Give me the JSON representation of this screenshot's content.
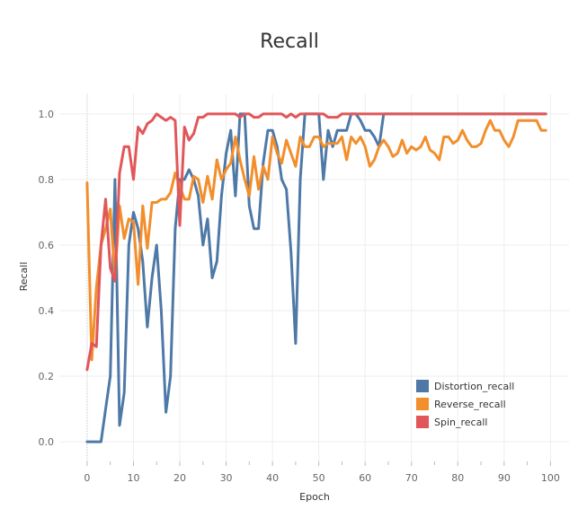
{
  "chart_data": {
    "type": "line",
    "title": "Recall",
    "xlabel": "Epoch",
    "ylabel": "Recall",
    "xlim": [
      -6,
      104
    ],
    "ylim": [
      -0.06,
      1.06
    ],
    "xticks": [
      0,
      10,
      20,
      30,
      40,
      50,
      60,
      70,
      80,
      90,
      100
    ],
    "yticks": [
      0.0,
      0.2,
      0.4,
      0.6,
      0.8,
      1.0
    ],
    "xtick_labels": [
      "0",
      "10",
      "20",
      "30",
      "40",
      "50",
      "60",
      "70",
      "80",
      "90",
      "100"
    ],
    "ytick_labels": [
      "0.0",
      "0.2",
      "0.4",
      "0.6",
      "0.8",
      "1.0"
    ],
    "grid": true,
    "legend_position": "bottom-right",
    "x": [
      0,
      1,
      2,
      3,
      4,
      5,
      6,
      7,
      8,
      9,
      10,
      11,
      12,
      13,
      14,
      15,
      16,
      17,
      18,
      19,
      20,
      21,
      22,
      23,
      24,
      25,
      26,
      27,
      28,
      29,
      30,
      31,
      32,
      33,
      34,
      35,
      36,
      37,
      38,
      39,
      40,
      41,
      42,
      43,
      44,
      45,
      46,
      47,
      48,
      49,
      50,
      51,
      52,
      53,
      54,
      55,
      56,
      57,
      58,
      59,
      60,
      61,
      62,
      63,
      64,
      65,
      66,
      67,
      68,
      69,
      70,
      71,
      72,
      73,
      74,
      75,
      76,
      77,
      78,
      79,
      80,
      81,
      82,
      83,
      84,
      85,
      86,
      87,
      88,
      89,
      90,
      91,
      92,
      93,
      94,
      95,
      96,
      97,
      98,
      99
    ],
    "series": [
      {
        "name": "Distortion_recall",
        "color": "#4e79a7",
        "values": [
          0.0,
          0.0,
          0.0,
          0.0,
          0.1,
          0.2,
          0.8,
          0.05,
          0.15,
          0.6,
          0.7,
          0.65,
          0.55,
          0.35,
          0.5,
          0.6,
          0.4,
          0.09,
          0.2,
          0.65,
          0.8,
          0.8,
          0.83,
          0.8,
          0.75,
          0.6,
          0.68,
          0.5,
          0.55,
          0.75,
          0.88,
          0.95,
          0.75,
          1.0,
          1.0,
          0.72,
          0.65,
          0.65,
          0.85,
          0.95,
          0.95,
          0.9,
          0.8,
          0.77,
          0.58,
          0.3,
          0.8,
          1.0,
          1.0,
          1.0,
          1.0,
          0.8,
          0.95,
          0.9,
          0.95,
          0.95,
          0.95,
          1.0,
          1.0,
          0.98,
          0.95,
          0.95,
          0.93,
          0.9,
          1.0,
          1.0,
          1.0,
          1.0,
          1.0,
          1.0,
          1.0,
          1.0,
          1.0,
          1.0,
          1.0,
          1.0,
          1.0,
          1.0,
          1.0,
          1.0,
          1.0,
          1.0,
          1.0,
          1.0,
          1.0,
          1.0,
          1.0,
          1.0,
          1.0,
          1.0,
          1.0,
          1.0,
          1.0,
          1.0,
          1.0,
          1.0,
          1.0,
          1.0,
          1.0,
          1.0
        ]
      },
      {
        "name": "Reverse_recall",
        "color": "#f28e2b",
        "values": [
          0.79,
          0.25,
          0.47,
          0.6,
          0.65,
          0.71,
          0.5,
          0.72,
          0.62,
          0.68,
          0.67,
          0.48,
          0.72,
          0.59,
          0.73,
          0.73,
          0.74,
          0.74,
          0.76,
          0.82,
          0.78,
          0.74,
          0.74,
          0.81,
          0.8,
          0.73,
          0.81,
          0.74,
          0.86,
          0.8,
          0.83,
          0.85,
          0.93,
          0.86,
          0.8,
          0.75,
          0.87,
          0.77,
          0.84,
          0.8,
          0.93,
          0.88,
          0.85,
          0.92,
          0.88,
          0.84,
          0.93,
          0.9,
          0.9,
          0.93,
          0.93,
          0.9,
          0.91,
          0.91,
          0.91,
          0.93,
          0.86,
          0.93,
          0.91,
          0.93,
          0.9,
          0.84,
          0.86,
          0.9,
          0.92,
          0.9,
          0.87,
          0.88,
          0.92,
          0.88,
          0.9,
          0.89,
          0.9,
          0.93,
          0.89,
          0.88,
          0.86,
          0.93,
          0.93,
          0.91,
          0.92,
          0.95,
          0.92,
          0.9,
          0.9,
          0.91,
          0.95,
          0.98,
          0.95,
          0.95,
          0.92,
          0.9,
          0.93,
          0.98,
          0.98,
          0.98,
          0.98,
          0.98,
          0.95,
          0.95
        ]
      },
      {
        "name": "Spin_recall",
        "color": "#e15759",
        "values": [
          0.22,
          0.3,
          0.29,
          0.6,
          0.74,
          0.53,
          0.49,
          0.82,
          0.9,
          0.9,
          0.8,
          0.96,
          0.94,
          0.97,
          0.98,
          1.0,
          0.99,
          0.98,
          0.99,
          0.98,
          0.66,
          0.96,
          0.92,
          0.94,
          0.99,
          0.99,
          1.0,
          1.0,
          1.0,
          1.0,
          1.0,
          1.0,
          1.0,
          0.99,
          1.0,
          1.0,
          0.99,
          0.99,
          1.0,
          1.0,
          1.0,
          1.0,
          1.0,
          0.99,
          1.0,
          0.99,
          1.0,
          1.0,
          1.0,
          1.0,
          1.0,
          1.0,
          0.99,
          0.99,
          0.99,
          1.0,
          1.0,
          1.0,
          1.0,
          1.0,
          1.0,
          1.0,
          1.0,
          1.0,
          1.0,
          1.0,
          1.0,
          1.0,
          1.0,
          1.0,
          1.0,
          1.0,
          1.0,
          1.0,
          1.0,
          1.0,
          1.0,
          1.0,
          1.0,
          1.0,
          1.0,
          1.0,
          1.0,
          1.0,
          1.0,
          1.0,
          1.0,
          1.0,
          1.0,
          1.0,
          1.0,
          1.0,
          1.0,
          1.0,
          1.0,
          1.0,
          1.0,
          1.0,
          1.0,
          1.0
        ]
      }
    ]
  }
}
